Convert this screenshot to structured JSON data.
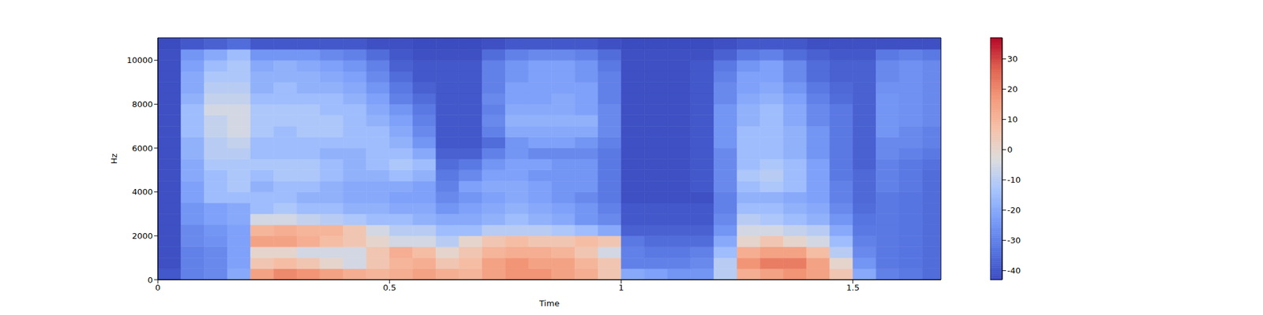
{
  "chart_data": {
    "type": "heatmap",
    "xlabel": "Time",
    "ylabel": "Hz",
    "xlim": [
      0,
      1.69
    ],
    "xticks": [
      0,
      0.5,
      1,
      1.5
    ],
    "ylim": [
      0,
      11025
    ],
    "yticks": [
      0,
      2000,
      4000,
      6000,
      8000,
      10000
    ],
    "x_edges": [
      0,
      0.05,
      0.1,
      0.15,
      0.2,
      0.25,
      0.3,
      0.35,
      0.4,
      0.45,
      0.5,
      0.55,
      0.6,
      0.65,
      0.7,
      0.75,
      0.8,
      0.85,
      0.9,
      0.95,
      1.0,
      1.05,
      1.1,
      1.15,
      1.2,
      1.25,
      1.3,
      1.35,
      1.4,
      1.45,
      1.5,
      1.55,
      1.6,
      1.65,
      1.69
    ],
    "y_edges": [
      0,
      500,
      1000,
      1500,
      2000,
      2500,
      3000,
      3500,
      4000,
      4500,
      5000,
      5500,
      6000,
      6500,
      7000,
      7500,
      8000,
      8500,
      9000,
      9500,
      10000,
      10500,
      11025
    ],
    "cells": [
      [
        -40,
        -30,
        -28,
        -20,
        15,
        20,
        18,
        15,
        12,
        10,
        12,
        15,
        12,
        10,
        15,
        18,
        18,
        15,
        12,
        5,
        -20,
        -22,
        -25,
        -25,
        -10,
        12,
        15,
        18,
        15,
        5,
        -20,
        -30,
        -32,
        -35
      ],
      [
        -42,
        -30,
        -28,
        -22,
        5,
        8,
        5,
        0,
        -5,
        5,
        10,
        12,
        5,
        8,
        15,
        18,
        15,
        15,
        10,
        5,
        -30,
        -30,
        -30,
        -28,
        -10,
        18,
        22,
        22,
        15,
        0,
        -25,
        -32,
        -33,
        -35
      ],
      [
        -42,
        -30,
        -28,
        -22,
        0,
        0,
        -5,
        -5,
        -5,
        5,
        12,
        8,
        0,
        5,
        10,
        12,
        12,
        10,
        5,
        -5,
        -30,
        -32,
        -32,
        -30,
        -15,
        12,
        15,
        15,
        8,
        -10,
        -28,
        -32,
        -33,
        -35
      ],
      [
        -42,
        -28,
        -26,
        -22,
        15,
        15,
        12,
        8,
        5,
        0,
        -5,
        -5,
        -10,
        0,
        5,
        8,
        5,
        5,
        8,
        5,
        -32,
        -35,
        -35,
        -35,
        -20,
        0,
        5,
        0,
        -5,
        -15,
        -30,
        -32,
        -33,
        -35
      ],
      [
        -42,
        -28,
        -25,
        -22,
        10,
        12,
        10,
        10,
        5,
        -5,
        -10,
        -10,
        -15,
        -15,
        -10,
        -10,
        -10,
        -12,
        -15,
        -20,
        -38,
        -38,
        -38,
        -38,
        -25,
        -5,
        -5,
        -8,
        -10,
        -20,
        -32,
        -32,
        -33,
        -35
      ],
      [
        -42,
        -25,
        -22,
        -20,
        -5,
        -5,
        -8,
        -10,
        -12,
        -15,
        -15,
        -18,
        -20,
        -20,
        -18,
        -15,
        -18,
        -20,
        -25,
        -28,
        -40,
        -40,
        -40,
        -40,
        -28,
        -10,
        -12,
        -15,
        -18,
        -25,
        -33,
        -32,
        -33,
        -35
      ],
      [
        -42,
        -25,
        -22,
        -20,
        -15,
        -12,
        -15,
        -15,
        -18,
        -18,
        -20,
        -20,
        -25,
        -22,
        -20,
        -18,
        -20,
        -22,
        -25,
        -30,
        -40,
        -40,
        -40,
        -40,
        -30,
        -15,
        -15,
        -18,
        -20,
        -28,
        -35,
        -32,
        -33,
        -35
      ],
      [
        -42,
        -22,
        -15,
        -15,
        -15,
        -15,
        -18,
        -18,
        -20,
        -20,
        -22,
        -22,
        -28,
        -25,
        -22,
        -20,
        -22,
        -25,
        -28,
        -32,
        -42,
        -42,
        -42,
        -42,
        -30,
        -18,
        -18,
        -20,
        -22,
        -30,
        -36,
        -32,
        -33,
        -35
      ],
      [
        -42,
        -22,
        -15,
        -12,
        -18,
        -15,
        -15,
        -18,
        -20,
        -20,
        -20,
        -22,
        -30,
        -22,
        -20,
        -20,
        -22,
        -25,
        -25,
        -32,
        -42,
        -42,
        -42,
        -40,
        -28,
        -15,
        -12,
        -15,
        -22,
        -30,
        -36,
        -30,
        -32,
        -35
      ],
      [
        -42,
        -20,
        -15,
        -12,
        -15,
        -12,
        -12,
        -15,
        -18,
        -18,
        -15,
        -18,
        -32,
        -28,
        -22,
        -22,
        -25,
        -25,
        -25,
        -32,
        -42,
        -42,
        -42,
        -40,
        -28,
        -12,
        -10,
        -15,
        -22,
        -32,
        -36,
        -30,
        -32,
        -35
      ],
      [
        -42,
        -20,
        -12,
        -12,
        -12,
        -12,
        -12,
        -15,
        -18,
        -15,
        -12,
        -15,
        -35,
        -32,
        -25,
        -22,
        -22,
        -25,
        -25,
        -32,
        -42,
        -42,
        -42,
        -40,
        -28,
        -15,
        -12,
        -15,
        -22,
        -32,
        -38,
        -30,
        -32,
        -34
      ],
      [
        -42,
        -18,
        -10,
        -10,
        -15,
        -15,
        -15,
        -18,
        -18,
        -15,
        -15,
        -20,
        -38,
        -38,
        -30,
        -25,
        -28,
        -28,
        -28,
        -32,
        -42,
        -42,
        -42,
        -40,
        -28,
        -15,
        -15,
        -18,
        -25,
        -32,
        -38,
        -28,
        -30,
        -32
      ],
      [
        -42,
        -18,
        -10,
        -8,
        -15,
        -15,
        -15,
        -15,
        -15,
        -15,
        -18,
        -25,
        -40,
        -40,
        -35,
        -25,
        -22,
        -22,
        -25,
        -30,
        -42,
        -42,
        -42,
        -40,
        -25,
        -15,
        -15,
        -18,
        -25,
        -32,
        -38,
        -28,
        -28,
        -30
      ],
      [
        -42,
        -15,
        -8,
        -5,
        -12,
        -15,
        -12,
        -12,
        -15,
        -15,
        -20,
        -28,
        -40,
        -40,
        -30,
        -20,
        -20,
        -20,
        -20,
        -28,
        -42,
        -42,
        -42,
        -40,
        -25,
        -15,
        -15,
        -18,
        -25,
        -32,
        -38,
        -25,
        -28,
        -30
      ],
      [
        -42,
        -15,
        -8,
        -5,
        -12,
        -12,
        -12,
        -12,
        -15,
        -18,
        -22,
        -30,
        -40,
        -40,
        -28,
        -18,
        -18,
        -18,
        -18,
        -28,
        -42,
        -42,
        -42,
        -40,
        -25,
        -18,
        -15,
        -20,
        -28,
        -32,
        -38,
        -25,
        -26,
        -28
      ],
      [
        -42,
        -15,
        -5,
        -5,
        -12,
        -12,
        -12,
        -15,
        -15,
        -20,
        -25,
        -32,
        -40,
        -40,
        -30,
        -20,
        -20,
        -20,
        -22,
        -28,
        -42,
        -42,
        -42,
        -40,
        -25,
        -18,
        -15,
        -20,
        -28,
        -32,
        -38,
        -25,
        -26,
        -28
      ],
      [
        -42,
        -18,
        -8,
        -8,
        -15,
        -15,
        -15,
        -15,
        -18,
        -22,
        -30,
        -35,
        -40,
        -40,
        -28,
        -22,
        -22,
        -20,
        -22,
        -30,
        -42,
        -42,
        -42,
        -40,
        -28,
        -20,
        -18,
        -22,
        -30,
        -35,
        -38,
        -25,
        -26,
        -28
      ],
      [
        -42,
        -20,
        -10,
        -10,
        -18,
        -15,
        -18,
        -18,
        -20,
        -25,
        -32,
        -38,
        -40,
        -40,
        -30,
        -22,
        -22,
        -22,
        -22,
        -30,
        -42,
        -42,
        -42,
        -40,
        -28,
        -22,
        -20,
        -25,
        -32,
        -36,
        -38,
        -26,
        -26,
        -28
      ],
      [
        -42,
        -20,
        -12,
        -12,
        -18,
        -18,
        -18,
        -20,
        -22,
        -28,
        -35,
        -40,
        -40,
        -40,
        -30,
        -25,
        -22,
        -22,
        -25,
        -30,
        -42,
        -42,
        -42,
        -40,
        -30,
        -22,
        -22,
        -28,
        -35,
        -38,
        -38,
        -28,
        -26,
        -28
      ],
      [
        -42,
        -22,
        -15,
        -12,
        -20,
        -18,
        -20,
        -22,
        -25,
        -30,
        -38,
        -40,
        -40,
        -40,
        -30,
        -25,
        -22,
        -22,
        -25,
        -32,
        -42,
        -42,
        -42,
        -40,
        -32,
        -25,
        -22,
        -28,
        -35,
        -38,
        -38,
        -28,
        -26,
        -28
      ],
      [
        -42,
        -25,
        -20,
        -15,
        -25,
        -25,
        -25,
        -28,
        -30,
        -35,
        -40,
        -42,
        -42,
        -42,
        -35,
        -30,
        -28,
        -28,
        -30,
        -35,
        -42,
        -42,
        -42,
        -42,
        -38,
        -32,
        -30,
        -35,
        -38,
        -40,
        -40,
        -32,
        -30,
        -32
      ],
      [
        -43,
        -40,
        -38,
        -35,
        -40,
        -40,
        -40,
        -40,
        -40,
        -42,
        -42,
        -43,
        -43,
        -43,
        -42,
        -40,
        -40,
        -40,
        -40,
        -42,
        -43,
        -43,
        -43,
        -43,
        -42,
        -40,
        -40,
        -40,
        -42,
        -42,
        -42,
        -42,
        -42,
        -42
      ]
    ],
    "colorbar": {
      "range": [
        -43,
        37
      ],
      "ticks": [
        -40,
        -30,
        -20,
        -10,
        0,
        10,
        20,
        30
      ]
    }
  }
}
